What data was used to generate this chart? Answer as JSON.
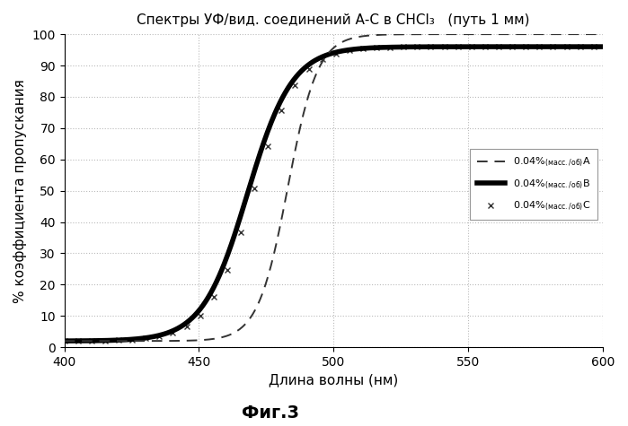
{
  "title": "Спектры УФ/вид. соединений А-С в CHCl₃   (путь 1 мм)",
  "xlabel": "Длина волны (нм)",
  "ylabel": "% коэффициента пропускания",
  "fig_label": "Фиг.3",
  "xlim": [
    400,
    600
  ],
  "ylim": [
    0,
    100
  ],
  "xticks": [
    400,
    450,
    500,
    550,
    600
  ],
  "yticks": [
    0,
    10,
    20,
    30,
    40,
    50,
    60,
    70,
    80,
    90,
    100
  ],
  "curve_A": {
    "color": "#333333",
    "linestyle": "--",
    "linewidth": 1.4,
    "x50": 483,
    "steepness": 0.18,
    "ymin": 2,
    "ymax": 100
  },
  "curve_B": {
    "color": "#000000",
    "linestyle": "-",
    "linewidth": 4.0,
    "x50": 468,
    "steepness": 0.12,
    "ymin": 2,
    "ymax": 96
  },
  "curve_C": {
    "color": "#333333",
    "linestyle": "none",
    "marker": "x",
    "markersize": 4,
    "markevery": 3,
    "x50": 470,
    "steepness": 0.12,
    "ymin": 2,
    "ymax": 96
  },
  "background_color": "#ffffff",
  "grid_color": "#bbbbbb",
  "legend_fontsize": 8,
  "title_fontsize": 11,
  "axis_label_fontsize": 11
}
